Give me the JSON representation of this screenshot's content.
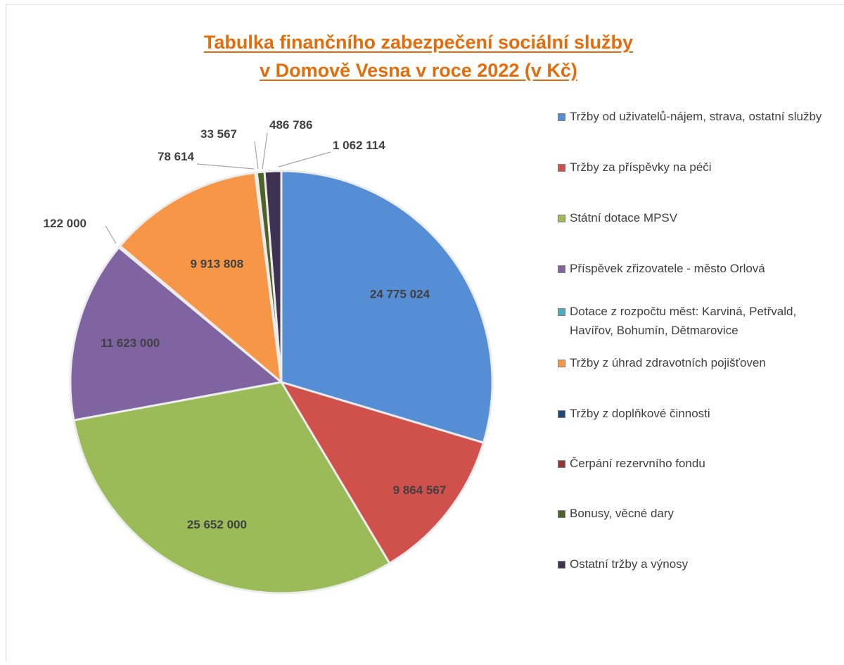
{
  "chart_data": {
    "type": "pie",
    "title": [
      "Tabulka finančního zabezpečení sociální služby",
      "v Domově Vesna v roce 2022 (v Kč)"
    ],
    "legend_position": "right",
    "slices": [
      {
        "name": "Tržby od uživatelů-nájem, strava, ostatní služby",
        "value": 24775024,
        "label": "24 775 024",
        "color": "#558ed5"
      },
      {
        "name": "Tržby za příspěvky na péči",
        "value": 9864567,
        "label": "9 864 567",
        "color": "#d0504c"
      },
      {
        "name": "Státní dotace MPSV",
        "value": 25652000,
        "label": "25 652 000",
        "color": "#9bbb59"
      },
      {
        "name": "Příspěvek zřizovatele - město Orlová",
        "value": 11623000,
        "label": "11 623 000",
        "color": "#8064a2"
      },
      {
        "name": "Dotace z rozpočtu měst: Karviná, Petřvald, Havířov, Bohumín, Dětmarovice",
        "value": 122000,
        "label": "122 000",
        "color": "#4bacc6"
      },
      {
        "name": "Tržby z úhrad zdravotních pojišťoven",
        "value": 9913808,
        "label": "9 913 808",
        "color": "#f79646"
      },
      {
        "name": "Tržby z doplňkové činnosti",
        "value": 78614,
        "label": "78 614",
        "color": "#1f497d"
      },
      {
        "name": "Čerpání rezervního fondu",
        "value": 33567,
        "label": "33 567",
        "color": "#943634"
      },
      {
        "name": "Bonusy, věcné dary",
        "value": 486786,
        "label": "486 786",
        "color": "#4f6228"
      },
      {
        "name": "Ostatní tržby a výnosy",
        "value": 1062114,
        "label": "1 062 114",
        "color": "#3f3151"
      }
    ]
  }
}
